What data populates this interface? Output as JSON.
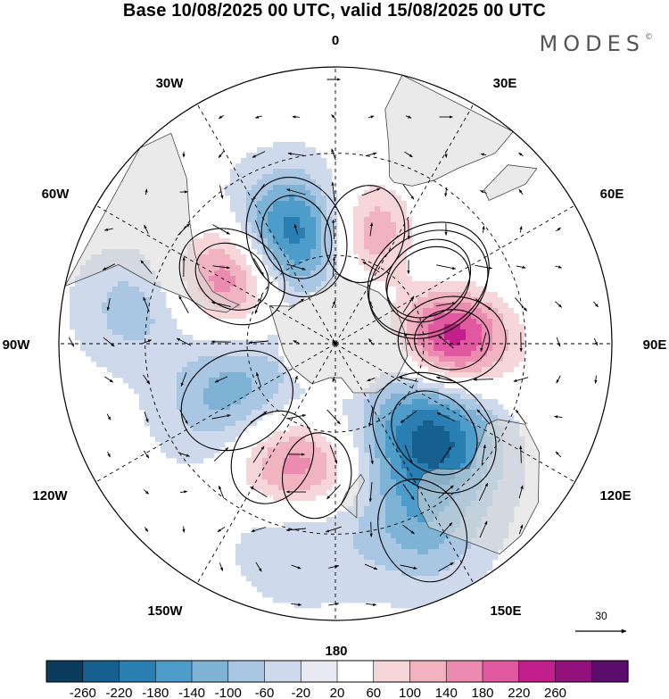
{
  "title": "Base 10/08/2025 00 UTC, valid 15/08/2025 00 UTC",
  "brand": {
    "name": "MODES",
    "mark": "©"
  },
  "map": {
    "projection": "south-polar-stereographic",
    "longitude_labels": [
      "0",
      "30E",
      "60E",
      "90E",
      "120E",
      "150E",
      "180",
      "150W",
      "120W",
      "90W",
      "60W",
      "30W"
    ],
    "reference_vector": {
      "value": "30"
    }
  },
  "colorbar": {
    "ticks": [
      "-260",
      "-220",
      "-180",
      "-140",
      "-100",
      "-60",
      "-20",
      "20",
      "60",
      "100",
      "140",
      "180",
      "220",
      "260"
    ],
    "colors": [
      "#0b3c5d",
      "#15608e",
      "#2a7fb2",
      "#4e9cc9",
      "#7fb3d5",
      "#a9c7e3",
      "#cfd9ec",
      "#e8e8f2",
      "#ffffff",
      "#f7d6da",
      "#f2b3c1",
      "#ec8bb0",
      "#df58a0",
      "#c1208c",
      "#93117d",
      "#5a0d6d"
    ]
  },
  "field": {
    "highs": [
      {
        "name": "H-southatlantic",
        "lat": -52,
        "lon": 15,
        "v": 190,
        "r": 0.63
      },
      {
        "name": "H-southindian",
        "lat": -51,
        "lon": 88,
        "v": 240,
        "r": 0.6
      },
      {
        "name": "H-southpacific-west",
        "lat": -53,
        "lon": 57.5,
        "v": 210,
        "r": 0.7
      },
      {
        "name": "H-south-america",
        "lat": -49,
        "lon": -57,
        "v": 200,
        "r": 0.62
      },
      {
        "name": "H-pacific-south",
        "lat": -47,
        "lon": -151,
        "v": 150,
        "r": 0.62
      },
      {
        "name": "H-pacific-ross",
        "lat": -46,
        "lon": -172,
        "v": 110,
        "r": 0.55
      },
      {
        "name": "H-weak-east",
        "lat": -32,
        "lon": 100,
        "v": 40,
        "r": 0.9
      }
    ],
    "lows": [
      {
        "name": "L-southatlantic",
        "lat": -52,
        "lon": -20,
        "v": -260,
        "r": 0.68
      },
      {
        "name": "L-indian",
        "lat": -52,
        "lon": 55,
        "v": -230,
        "r": 0.72
      },
      {
        "name": "L-australia",
        "lat": -46,
        "lon": 132,
        "v": -250,
        "r": 0.75
      },
      {
        "name": "L-pacific",
        "lat": -52,
        "lon": -120,
        "v": -140,
        "r": 0.75
      },
      {
        "name": "L-southeast-pacific",
        "lat": -26,
        "lon": -80,
        "v": -80,
        "r": 0.62
      },
      {
        "name": "L-tasman",
        "lat": -26,
        "lon": 155,
        "v": -100,
        "r": 0.68
      },
      {
        "name": "L-new-zealand-south",
        "lat": -31,
        "lon": -170,
        "v": -80,
        "r": 0.75
      }
    ]
  }
}
